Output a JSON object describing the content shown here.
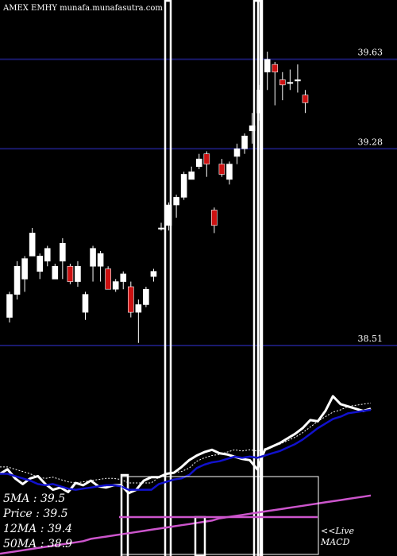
{
  "header": {
    "text": "AMEX  EMHY munafa.munafasutra.com"
  },
  "indicators": {
    "ma5": "5MA : 39.5",
    "price": "Price  : 39.5",
    "ma12": "12MA : 39.4",
    "ma50": "50MA : 38.9"
  },
  "footer": {
    "live": "<<Live",
    "macd": "MACD"
  },
  "colors": {
    "background": "#000000",
    "up_candle": "#ffffff",
    "down_candle": "#cc1111",
    "grid": "#1a1a6e",
    "macd_line": "#ffffff",
    "signal_line": "#1111cc",
    "long_line": "#cc55cc"
  },
  "chart_data": {
    "type": "candlestick",
    "ylim": [
      38.37,
      39.8
    ],
    "yticks": [
      {
        "value": 39.63,
        "label": "39.63"
      },
      {
        "value": 39.28,
        "label": "39.28"
      },
      {
        "value": 38.51,
        "label": "38.51"
      }
    ],
    "candles": [
      {
        "o": 38.62,
        "c": 38.71,
        "h": 38.72,
        "l": 38.6
      },
      {
        "o": 38.71,
        "c": 38.82,
        "h": 38.84,
        "l": 38.69
      },
      {
        "o": 38.77,
        "c": 38.85,
        "h": 38.86,
        "l": 38.72
      },
      {
        "o": 38.86,
        "c": 38.95,
        "h": 38.97,
        "l": 38.86
      },
      {
        "o": 38.8,
        "c": 38.86,
        "h": 38.87,
        "l": 38.77
      },
      {
        "o": 38.84,
        "c": 38.89,
        "h": 38.9,
        "l": 38.82
      },
      {
        "o": 38.77,
        "c": 38.82,
        "h": 38.83,
        "l": 38.77
      },
      {
        "o": 38.84,
        "c": 38.91,
        "h": 38.93,
        "l": 38.77
      },
      {
        "o": 38.82,
        "c": 38.76,
        "h": 38.83,
        "l": 38.75
      },
      {
        "o": 38.76,
        "c": 38.82,
        "h": 38.84,
        "l": 38.74
      },
      {
        "o": 38.64,
        "c": 38.71,
        "h": 38.72,
        "l": 38.61
      },
      {
        "o": 38.82,
        "c": 38.89,
        "h": 38.9,
        "l": 38.76
      },
      {
        "o": 38.82,
        "c": 38.87,
        "h": 38.88,
        "l": 38.76
      },
      {
        "o": 38.81,
        "c": 38.73,
        "h": 38.82,
        "l": 38.73
      },
      {
        "o": 38.73,
        "c": 38.76,
        "h": 38.77,
        "l": 38.72
      },
      {
        "o": 38.76,
        "c": 38.79,
        "h": 38.8,
        "l": 38.73
      },
      {
        "o": 38.74,
        "c": 38.64,
        "h": 38.76,
        "l": 38.62
      },
      {
        "o": 38.64,
        "c": 38.67,
        "h": 38.69,
        "l": 38.52
      },
      {
        "o": 38.67,
        "c": 38.73,
        "h": 38.74,
        "l": 38.66
      },
      {
        "o": 38.78,
        "c": 38.8,
        "h": 38.81,
        "l": 38.76
      },
      {
        "o": 38.97,
        "c": 38.97,
        "h": 38.99,
        "l": 38.96
      },
      {
        "o": 38.98,
        "c": 39.06,
        "h": 39.07,
        "l": 38.96
      },
      {
        "o": 39.06,
        "c": 39.09,
        "h": 39.1,
        "l": 39.01
      },
      {
        "o": 39.09,
        "c": 39.18,
        "h": 39.19,
        "l": 39.08
      },
      {
        "o": 39.16,
        "c": 39.19,
        "h": 39.21,
        "l": 39.16
      },
      {
        "o": 39.21,
        "c": 39.24,
        "h": 39.26,
        "l": 39.2
      },
      {
        "o": 39.26,
        "c": 39.22,
        "h": 39.27,
        "l": 39.17
      },
      {
        "o": 39.04,
        "c": 38.98,
        "h": 39.05,
        "l": 38.95
      },
      {
        "o": 39.22,
        "c": 39.18,
        "h": 39.24,
        "l": 39.17
      },
      {
        "o": 39.16,
        "c": 39.22,
        "h": 39.23,
        "l": 39.14
      },
      {
        "o": 39.25,
        "c": 39.28,
        "h": 39.3,
        "l": 39.22
      },
      {
        "o": 39.28,
        "c": 39.33,
        "h": 39.34,
        "l": 39.26
      },
      {
        "o": 39.35,
        "c": 39.37,
        "h": 39.42,
        "l": 39.3
      },
      {
        "o": 39.42,
        "c": 39.51,
        "h": 39.53,
        "l": 39.39
      },
      {
        "o": 39.58,
        "c": 39.63,
        "h": 39.66,
        "l": 39.51
      },
      {
        "o": 39.61,
        "c": 39.58,
        "h": 39.62,
        "l": 39.45
      },
      {
        "o": 39.55,
        "c": 39.53,
        "h": 39.58,
        "l": 39.47
      },
      {
        "o": 39.54,
        "c": 39.54,
        "h": 39.59,
        "l": 39.51
      },
      {
        "o": 39.55,
        "c": 39.55,
        "h": 39.61,
        "l": 39.5
      },
      {
        "o": 39.49,
        "c": 39.46,
        "h": 39.51,
        "l": 39.42
      }
    ],
    "macd": [
      72,
      76,
      68,
      63,
      68,
      70,
      63,
      58,
      60,
      56,
      64,
      62,
      66,
      61,
      60,
      62,
      62,
      55,
      58,
      66,
      69,
      69,
      72,
      73,
      78,
      84,
      88,
      91,
      93,
      90,
      89,
      87,
      85,
      84,
      76,
      93,
      96,
      99,
      103,
      107,
      112,
      119,
      118,
      127,
      140,
      133,
      131,
      129,
      127,
      129
    ],
    "signal": [
      72,
      72,
      70,
      68,
      66,
      63,
      62,
      63,
      61,
      59,
      58,
      59,
      60,
      61,
      62,
      62,
      61,
      58,
      58,
      58,
      58,
      63,
      65,
      67,
      68,
      71,
      77,
      80,
      82,
      83,
      85,
      87,
      86,
      87,
      86,
      88,
      90,
      92,
      95,
      98,
      102,
      107,
      112,
      116,
      120,
      122,
      125,
      126,
      127,
      128
    ],
    "long": [
      2,
      3,
      4,
      5,
      6,
      7,
      8,
      9,
      10,
      11,
      12,
      13,
      15,
      16,
      17,
      18,
      19,
      20,
      21,
      22,
      23,
      24,
      25,
      26,
      27,
      28,
      29,
      30,
      31,
      33,
      34,
      35,
      36,
      37,
      38,
      39,
      40,
      41,
      42,
      43,
      44,
      45,
      46,
      47,
      48,
      49,
      50,
      51,
      52,
      53
    ]
  }
}
